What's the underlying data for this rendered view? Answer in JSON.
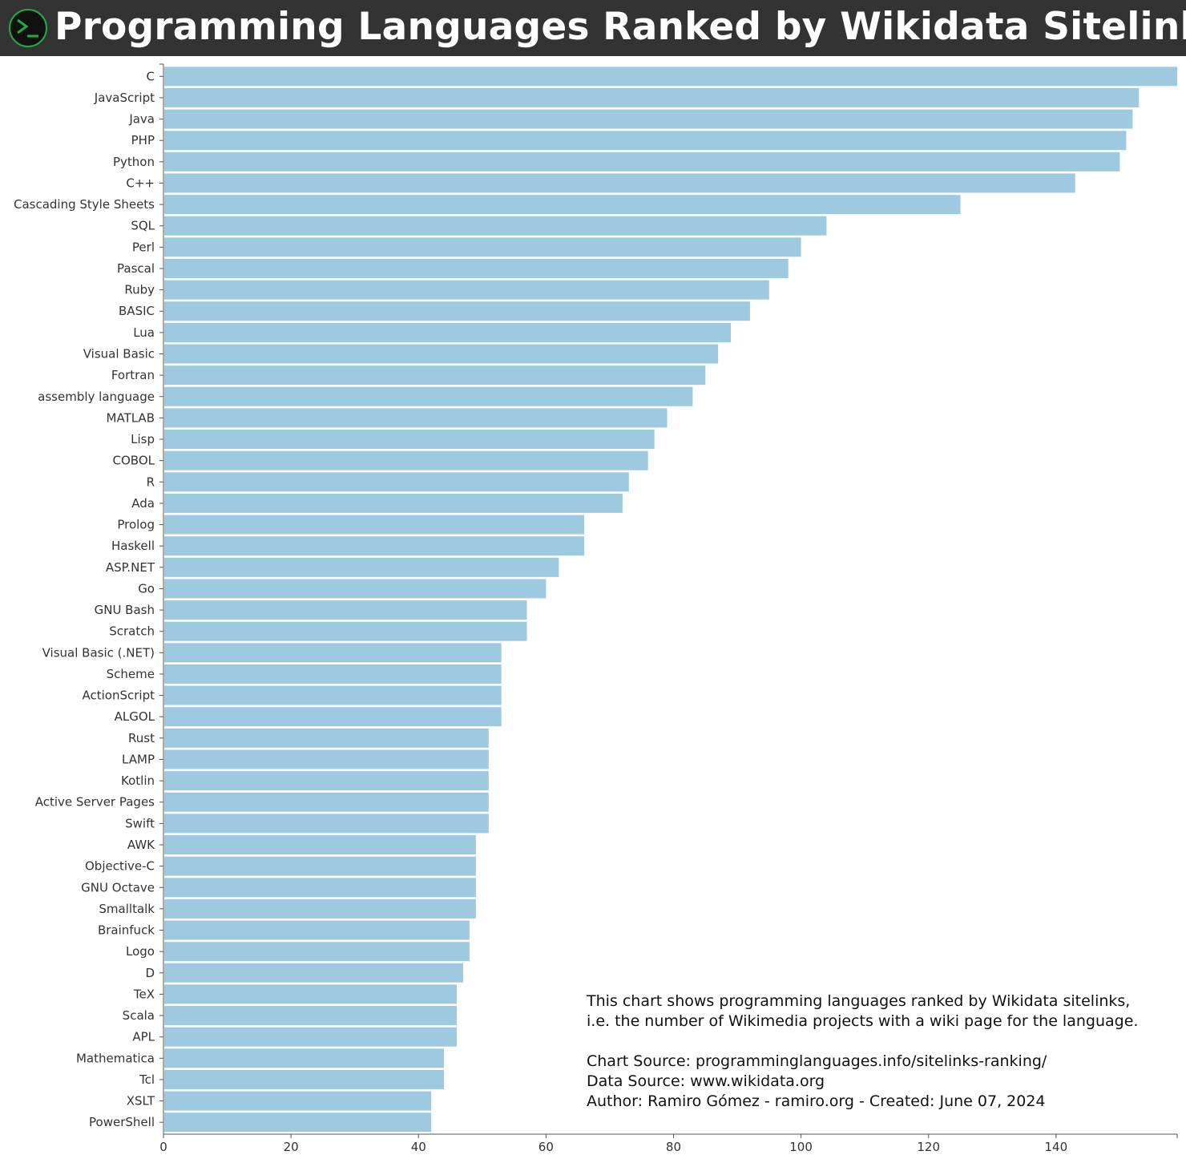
{
  "header": {
    "title": "Programming Languages Ranked by Wikidata Sitelinks",
    "logo_icon": "terminal-prompt-icon",
    "background": "#333333",
    "logo_color": "#22aa44"
  },
  "chart_data": {
    "type": "bar",
    "orientation": "horizontal",
    "title": "Programming Languages Ranked by Wikidata Sitelinks",
    "bar_color": "#9ecae1",
    "xlim": [
      0,
      159
    ],
    "xticks": [
      0,
      20,
      40,
      60,
      80,
      100,
      120,
      140
    ],
    "categories": [
      "C",
      "JavaScript",
      "Java",
      "PHP",
      "Python",
      "C++",
      "Cascading Style Sheets",
      "SQL",
      "Perl",
      "Pascal",
      "Ruby",
      "BASIC",
      "Lua",
      "Visual Basic",
      "Fortran",
      "assembly language",
      "MATLAB",
      "Lisp",
      "COBOL",
      "R",
      "Ada",
      "Prolog",
      "Haskell",
      "ASP.NET",
      "Go",
      "GNU Bash",
      "Scratch",
      "Visual Basic (.NET)",
      "Scheme",
      "ActionScript",
      "ALGOL",
      "Rust",
      "LAMP",
      "Kotlin",
      "Active Server Pages",
      "Swift",
      "AWK",
      "Objective-C",
      "GNU Octave",
      "Smalltalk",
      "Brainfuck",
      "Logo",
      "D",
      "TeX",
      "Scala",
      "APL",
      "Mathematica",
      "Tcl",
      "XSLT",
      "PowerShell"
    ],
    "values": [
      159,
      153,
      152,
      151,
      150,
      143,
      125,
      104,
      100,
      98,
      95,
      92,
      89,
      87,
      85,
      83,
      79,
      77,
      76,
      73,
      72,
      66,
      66,
      62,
      60,
      57,
      57,
      53,
      53,
      53,
      53,
      51,
      51,
      51,
      51,
      51,
      49,
      49,
      49,
      49,
      48,
      48,
      47,
      46,
      46,
      46,
      44,
      44,
      42,
      42
    ]
  },
  "note": {
    "line1": "This chart shows programming languages ranked by Wikidata sitelinks,",
    "line2": "i.e. the number of Wikimedia projects with a wiki page for the language.",
    "line3": "Chart Source: programminglanguages.info/sitelinks-ranking/",
    "line4": "Data Source: www.wikidata.org",
    "line5": "Author: Ramiro Gómez - ramiro.org - Created: June 07, 2024"
  }
}
